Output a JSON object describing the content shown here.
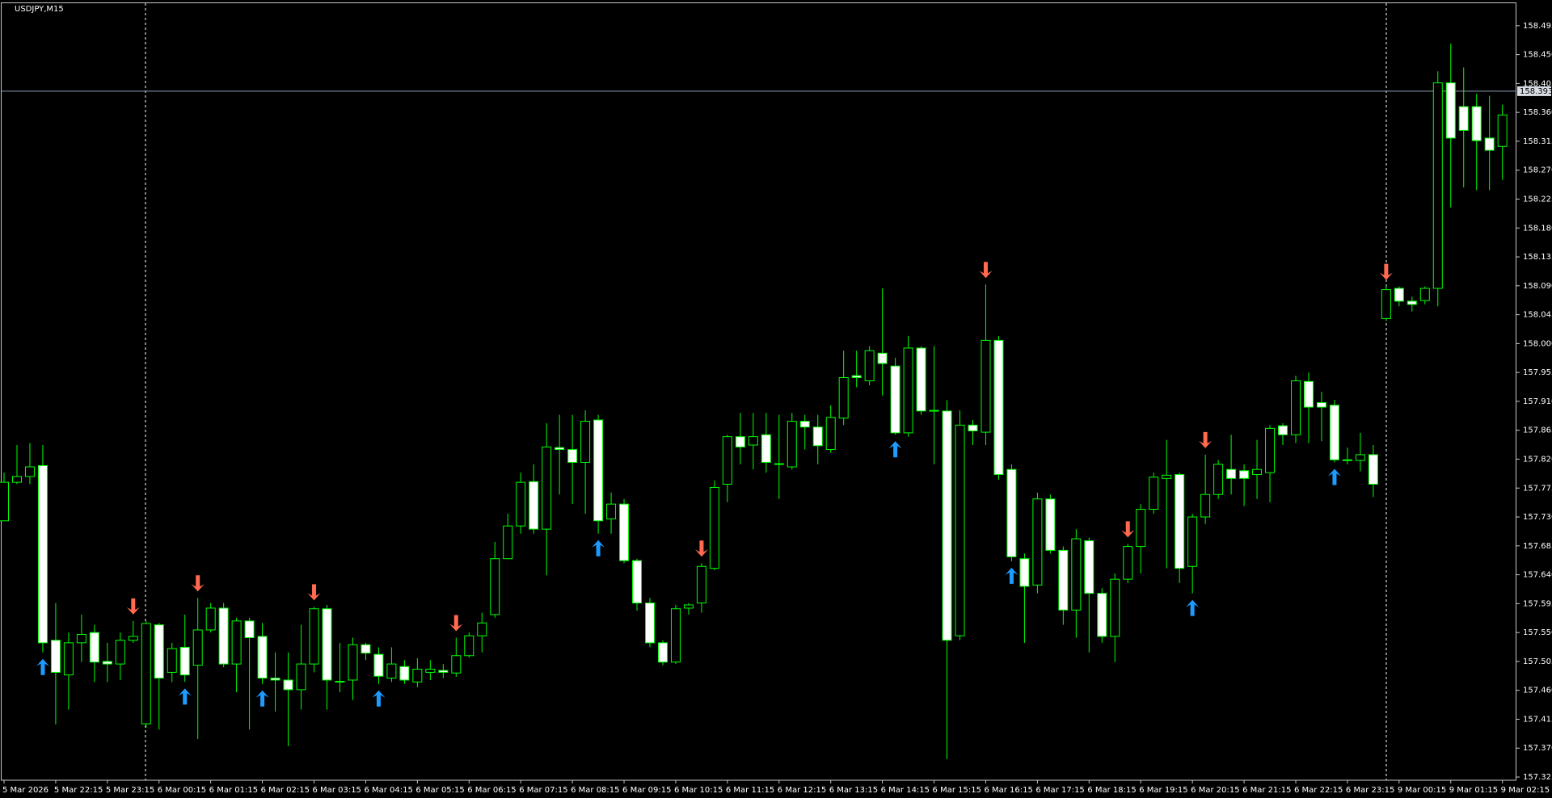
{
  "chart_data": {
    "type": "candlestick",
    "title": "USDJPY,M15",
    "color": "#00ff00",
    "bull_fill": "#000000",
    "bear_fill": "#ffffff",
    "up_arrow_color": "#1e9bff",
    "down_arrow_color": "#ff6a50",
    "price_line_color": "#8c9eb5",
    "categories": [
      "5 Mar 2026",
      null,
      null,
      null,
      "5 Mar 22:15",
      null,
      null,
      null,
      "5 Mar 23:15",
      null,
      null,
      null,
      "6 Mar 00:15",
      null,
      null,
      null,
      "6 Mar 01:15",
      null,
      null,
      null,
      "6 Mar 02:15",
      null,
      null,
      null,
      "6 Mar 03:15",
      null,
      null,
      null,
      "6 Mar 04:15",
      null,
      null,
      null,
      "6 Mar 05:15",
      null,
      null,
      null,
      "6 Mar 06:15",
      null,
      null,
      null,
      "6 Mar 07:15",
      null,
      null,
      null,
      "6 Mar 08:15",
      null,
      null,
      null,
      "6 Mar 09:15",
      null,
      null,
      null,
      "6 Mar 10:15",
      null,
      null,
      null,
      "6 Mar 11:15",
      null,
      null,
      null,
      "6 Mar 12:15",
      null,
      null,
      null,
      "6 Mar 13:15",
      null,
      null,
      null,
      "6 Mar 14:15",
      null,
      null,
      null,
      "6 Mar 15:15",
      null,
      null,
      null,
      "6 Mar 16:15",
      null,
      null,
      null,
      "6 Mar 17:15",
      null,
      null,
      null,
      "6 Mar 18:15",
      null,
      null,
      null,
      "6 Mar 19:15",
      null,
      null,
      null,
      "6 Mar 20:15",
      null,
      null,
      null,
      "6 Mar 21:15",
      null,
      null,
      null,
      "6 Mar 22:15",
      null,
      null,
      null,
      "6 Mar 23:15",
      null,
      null,
      null,
      "9 Mar 00:15",
      null,
      null,
      null,
      "9 Mar 01:15",
      null,
      null,
      null,
      "9 Mar 02:15"
    ],
    "open": [
      157.724,
      157.784,
      157.793,
      157.81,
      157.538,
      157.484,
      157.534,
      157.55,
      157.505,
      157.501,
      157.538,
      157.408,
      157.562,
      157.488,
      157.527,
      157.499,
      157.554,
      157.588,
      157.501,
      157.568,
      157.544,
      157.479,
      157.476,
      157.461,
      157.501,
      157.587,
      157.474,
      157.476,
      157.531,
      157.516,
      157.479,
      157.497,
      157.473,
      157.488,
      157.491,
      157.487,
      157.514,
      157.545,
      157.578,
      157.665,
      157.716,
      157.785,
      157.711,
      157.838,
      157.835,
      157.815,
      157.881,
      157.727,
      157.75,
      157.662,
      157.596,
      157.534,
      157.504,
      157.588,
      157.596,
      157.65,
      157.781,
      157.855,
      157.842,
      157.858,
      157.813,
      157.808,
      157.879,
      157.87,
      157.835,
      157.884,
      157.95,
      157.942,
      157.985,
      157.965,
      157.861,
      157.993,
      157.896,
      157.895,
      157.545,
      157.873,
      157.862,
      158.005,
      157.804,
      157.665,
      157.624,
      157.758,
      157.678,
      157.585,
      157.693,
      157.611,
      157.544,
      157.633,
      157.684,
      157.742,
      157.79,
      157.796,
      157.653,
      157.73,
      157.765,
      157.804,
      157.802,
      157.796,
      157.799,
      157.872,
      157.858,
      157.941,
      157.908,
      157.904,
      157.819,
      157.818,
      157.827,
      158.039,
      158.086,
      158.066,
      158.067,
      158.086,
      158.406,
      158.369,
      158.369,
      158.32,
      158.307
    ],
    "high": [
      157.799,
      157.842,
      157.845,
      157.842,
      157.596,
      157.55,
      157.578,
      157.562,
      157.534,
      157.55,
      157.568,
      157.568,
      157.565,
      157.534,
      157.578,
      157.604,
      157.596,
      157.596,
      157.573,
      157.573,
      157.565,
      157.519,
      157.519,
      157.562,
      157.59,
      157.593,
      157.534,
      157.542,
      157.534,
      157.527,
      157.527,
      157.507,
      157.51,
      157.507,
      157.501,
      157.542,
      157.55,
      157.581,
      157.691,
      157.735,
      157.799,
      157.812,
      157.876,
      157.889,
      157.889,
      157.896,
      157.889,
      157.768,
      157.758,
      157.665,
      157.604,
      157.538,
      157.593,
      157.596,
      157.658,
      157.787,
      157.858,
      157.892,
      157.892,
      157.892,
      157.889,
      157.892,
      157.889,
      157.889,
      157.904,
      157.989,
      157.989,
      157.996,
      158.086,
      157.978,
      158.012,
      157.996,
      157.996,
      157.912,
      157.896,
      157.881,
      158.092,
      158.012,
      157.812,
      157.673,
      157.768,
      157.765,
      157.684,
      157.711,
      157.698,
      157.619,
      157.642,
      157.688,
      157.75,
      157.799,
      157.85,
      157.799,
      157.735,
      157.827,
      157.819,
      157.858,
      157.812,
      157.85,
      157.873,
      157.876,
      157.95,
      157.955,
      157.925,
      157.912,
      157.838,
      157.861,
      157.842,
      158.089,
      158.089,
      158.073,
      158.089,
      158.424,
      158.467,
      158.43,
      158.389,
      158.386,
      158.372
    ],
    "low": [
      157.724,
      157.781,
      157.781,
      157.519,
      157.407,
      157.43,
      157.504,
      157.473,
      157.473,
      157.476,
      157.534,
      157.402,
      157.399,
      157.473,
      157.473,
      157.384,
      157.55,
      157.496,
      157.457,
      157.399,
      157.47,
      157.427,
      157.373,
      157.43,
      157.488,
      157.43,
      157.457,
      157.445,
      157.507,
      157.47,
      157.473,
      157.47,
      157.465,
      157.476,
      157.479,
      157.481,
      157.511,
      157.519,
      157.573,
      157.664,
      157.704,
      157.704,
      157.639,
      157.765,
      157.75,
      157.735,
      157.704,
      157.704,
      157.658,
      157.584,
      157.527,
      157.499,
      157.501,
      157.578,
      157.581,
      157.647,
      157.753,
      157.812,
      157.804,
      157.799,
      157.758,
      157.804,
      157.835,
      157.812,
      157.83,
      157.873,
      157.932,
      157.935,
      157.919,
      157.858,
      157.855,
      157.889,
      157.812,
      157.353,
      157.538,
      157.842,
      157.842,
      157.788,
      157.661,
      157.534,
      157.611,
      157.673,
      157.562,
      157.542,
      157.519,
      157.534,
      157.504,
      157.627,
      157.642,
      157.735,
      157.65,
      157.627,
      157.611,
      157.719,
      157.758,
      157.765,
      157.747,
      157.758,
      157.753,
      157.842,
      157.845,
      157.845,
      157.848,
      157.815,
      157.812,
      157.801,
      157.761,
      158.035,
      158.058,
      158.05,
      158.061,
      158.058,
      158.212,
      158.243,
      158.239,
      158.239,
      158.255
    ],
    "close": [
      157.784,
      157.793,
      157.808,
      157.534,
      157.488,
      157.534,
      157.547,
      157.504,
      157.501,
      157.538,
      157.544,
      157.564,
      157.479,
      157.525,
      157.484,
      157.554,
      157.588,
      157.501,
      157.568,
      157.542,
      157.479,
      157.476,
      157.461,
      157.501,
      157.587,
      157.476,
      157.473,
      157.531,
      157.518,
      157.482,
      157.501,
      157.476,
      157.493,
      157.493,
      157.488,
      157.514,
      157.545,
      157.565,
      157.665,
      157.716,
      157.784,
      157.711,
      157.839,
      157.835,
      157.815,
      157.879,
      157.724,
      157.75,
      157.662,
      157.596,
      157.534,
      157.504,
      157.587,
      157.593,
      157.653,
      157.776,
      157.855,
      157.839,
      157.855,
      157.815,
      157.812,
      157.879,
      157.87,
      157.841,
      157.885,
      157.947,
      157.947,
      157.989,
      157.969,
      157.861,
      157.993,
      157.895,
      157.895,
      157.538,
      157.873,
      157.864,
      158.005,
      157.796,
      157.668,
      157.622,
      157.758,
      157.678,
      157.585,
      157.696,
      157.611,
      157.544,
      157.633,
      157.684,
      157.742,
      157.792,
      157.795,
      157.65,
      157.73,
      157.765,
      157.812,
      157.79,
      157.79,
      157.804,
      157.868,
      157.858,
      157.942,
      157.901,
      157.901,
      157.819,
      157.818,
      157.827,
      157.781,
      158.084,
      158.066,
      158.061,
      158.086,
      158.406,
      158.32,
      158.332,
      158.316,
      158.301,
      158.356
    ],
    "up_arrows": [
      3,
      14,
      20,
      29,
      46,
      69,
      78,
      92,
      103
    ],
    "down_arrows": [
      10,
      15,
      24,
      35,
      54,
      76,
      87,
      93,
      107
    ],
    "price_line": 158.393,
    "ylim": [
      157.32,
      158.53
    ],
    "yticks": [
      157.325,
      {
        "value": 157.37,
        "label": "157.370"
      },
      157.415,
      {
        "value": 157.46,
        "label": "157.460"
      },
      157.505,
      {
        "value": 157.55,
        "label": "157.550"
      },
      157.595,
      {
        "value": 157.64,
        "label": "157.640"
      },
      157.685,
      {
        "value": 157.73,
        "label": "157.730"
      },
      157.775,
      {
        "value": 157.82,
        "label": "157.820"
      },
      157.865,
      {
        "value": 157.91,
        "label": "157.910"
      },
      157.955,
      {
        "value": 158.0,
        "label": "158.000"
      },
      158.045,
      {
        "value": 158.09,
        "label": "158.090"
      },
      158.135,
      {
        "value": 158.18,
        "label": "158.180"
      },
      158.225,
      {
        "value": 158.27,
        "label": "158.270"
      },
      158.315,
      {
        "value": 158.36,
        "label": "158.360"
      },
      158.405,
      {
        "value": 158.45,
        "label": "158.450"
      },
      158.495
    ]
  }
}
